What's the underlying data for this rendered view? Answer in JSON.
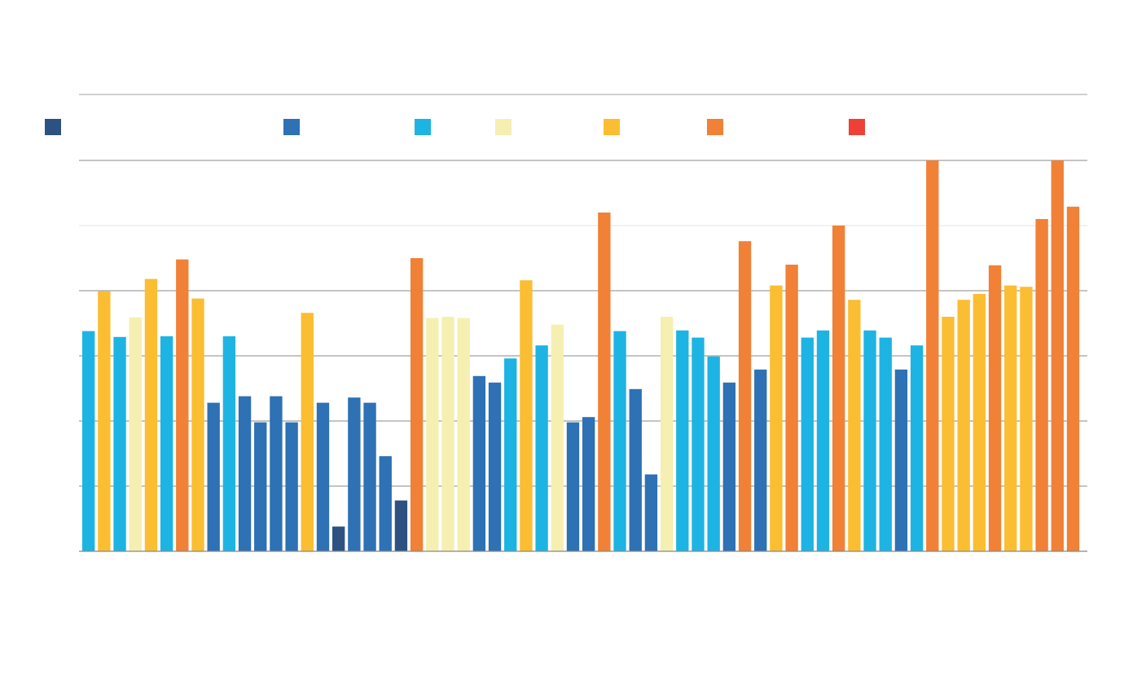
{
  "chart_data": {
    "type": "bar",
    "title": "",
    "xlabel": "",
    "ylabel": "",
    "ylim": [
      0,
      6
    ],
    "grid": true,
    "legend_position": "top",
    "series": [
      {
        "key": "s0",
        "color": "#2d5282"
      },
      {
        "key": "s1",
        "color": "#2e71b4"
      },
      {
        "key": "s2",
        "color": "#1db4e3"
      },
      {
        "key": "s3",
        "color": "#f5efb2"
      },
      {
        "key": "s4",
        "color": "#fbbd32"
      },
      {
        "key": "s5",
        "color": "#f08136"
      },
      {
        "key": "s6",
        "color": "#ee4036"
      }
    ],
    "bars": [
      {
        "s": 2,
        "v": 3.38
      },
      {
        "s": 4,
        "v": 3.99
      },
      {
        "s": 2,
        "v": 3.29
      },
      {
        "s": 3,
        "v": 3.59
      },
      {
        "s": 4,
        "v": 4.18
      },
      {
        "s": 2,
        "v": 3.3
      },
      {
        "s": 5,
        "v": 4.48
      },
      {
        "s": 4,
        "v": 3.88
      },
      {
        "s": 1,
        "v": 2.28
      },
      {
        "s": 2,
        "v": 3.3
      },
      {
        "s": 1,
        "v": 2.38
      },
      {
        "s": 1,
        "v": 1.98
      },
      {
        "s": 1,
        "v": 2.38
      },
      {
        "s": 1,
        "v": 1.98
      },
      {
        "s": 4,
        "v": 3.66
      },
      {
        "s": 1,
        "v": 2.28
      },
      {
        "s": 0,
        "v": 0.38
      },
      {
        "s": 1,
        "v": 2.36
      },
      {
        "s": 1,
        "v": 2.28
      },
      {
        "s": 1,
        "v": 1.46
      },
      {
        "s": 0,
        "v": 0.78
      },
      {
        "s": 5,
        "v": 4.5
      },
      {
        "s": 3,
        "v": 3.58
      },
      {
        "s": 3,
        "v": 3.6
      },
      {
        "s": 3,
        "v": 3.58
      },
      {
        "s": 1,
        "v": 2.69
      },
      {
        "s": 1,
        "v": 2.59
      },
      {
        "s": 2,
        "v": 2.96
      },
      {
        "s": 4,
        "v": 4.16
      },
      {
        "s": 2,
        "v": 3.16
      },
      {
        "s": 3,
        "v": 3.48
      },
      {
        "s": 1,
        "v": 1.98
      },
      {
        "s": 1,
        "v": 2.06
      },
      {
        "s": 5,
        "v": 5.2
      },
      {
        "s": 2,
        "v": 3.38
      },
      {
        "s": 1,
        "v": 2.49
      },
      {
        "s": 1,
        "v": 1.18
      },
      {
        "s": 3,
        "v": 3.6
      },
      {
        "s": 2,
        "v": 3.39
      },
      {
        "s": 2,
        "v": 3.28
      },
      {
        "s": 2,
        "v": 2.99
      },
      {
        "s": 1,
        "v": 2.59
      },
      {
        "s": 5,
        "v": 4.76
      },
      {
        "s": 1,
        "v": 2.79
      },
      {
        "s": 4,
        "v": 4.08
      },
      {
        "s": 5,
        "v": 4.4
      },
      {
        "s": 2,
        "v": 3.28
      },
      {
        "s": 2,
        "v": 3.39
      },
      {
        "s": 5,
        "v": 5.0
      },
      {
        "s": 4,
        "v": 3.86
      },
      {
        "s": 2,
        "v": 3.39
      },
      {
        "s": 2,
        "v": 3.28
      },
      {
        "s": 1,
        "v": 2.79
      },
      {
        "s": 2,
        "v": 3.16
      },
      {
        "s": 5,
        "v": 6.0
      },
      {
        "s": 4,
        "v": 3.6
      },
      {
        "s": 4,
        "v": 3.86
      },
      {
        "s": 4,
        "v": 3.95
      },
      {
        "s": 5,
        "v": 4.39
      },
      {
        "s": 4,
        "v": 4.08
      },
      {
        "s": 4,
        "v": 4.06
      },
      {
        "s": 5,
        "v": 5.1
      },
      {
        "s": 5,
        "v": 6.0
      },
      {
        "s": 5,
        "v": 5.29
      }
    ]
  }
}
